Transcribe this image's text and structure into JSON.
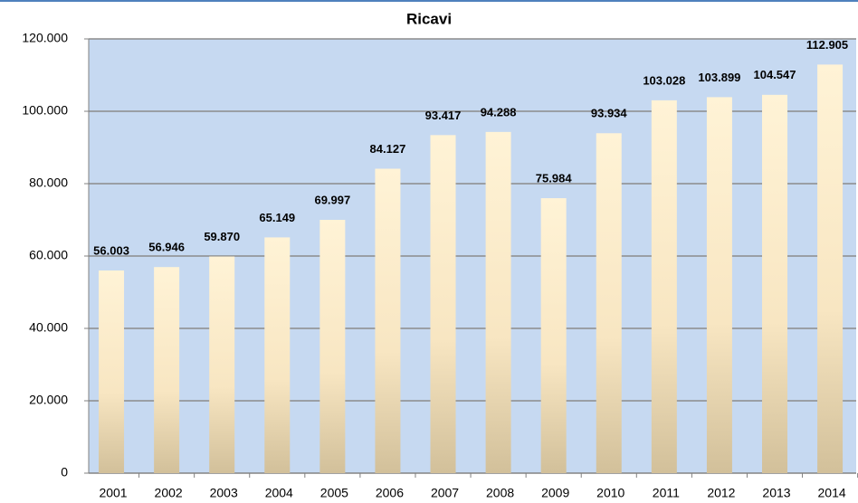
{
  "chart_data": {
    "type": "bar",
    "title": "Ricavi",
    "categories": [
      "2001",
      "2002",
      "2003",
      "2004",
      "2005",
      "2006",
      "2007",
      "2008",
      "2009",
      "2010",
      "2011",
      "2012",
      "2013",
      "2014"
    ],
    "values": [
      56003,
      56946,
      59870,
      65149,
      69997,
      84127,
      93417,
      94288,
      75984,
      93934,
      103028,
      103899,
      104547,
      112905
    ],
    "value_labels": [
      "56.003",
      "56.946",
      "59.870",
      "65.149",
      "69.997",
      "84.127",
      "93.417",
      "94.288",
      "75.984",
      "93.934",
      "103.028",
      "103.899",
      "104.547",
      "112.905"
    ],
    "color": "#f5e3bd",
    "ylim": [
      0,
      120000
    ],
    "yticks": [
      0,
      {
        "value": 20000,
        "label": "20.000"
      },
      {
        "value": 40000,
        "label": "40.000"
      },
      {
        "value": 60000,
        "label": "60.000"
      },
      {
        "value": 80000,
        "label": "80.000"
      },
      {
        "value": 100000,
        "label": "100.000"
      },
      {
        "value": 120000,
        "label": "120.000"
      }
    ],
    "grid": true
  }
}
